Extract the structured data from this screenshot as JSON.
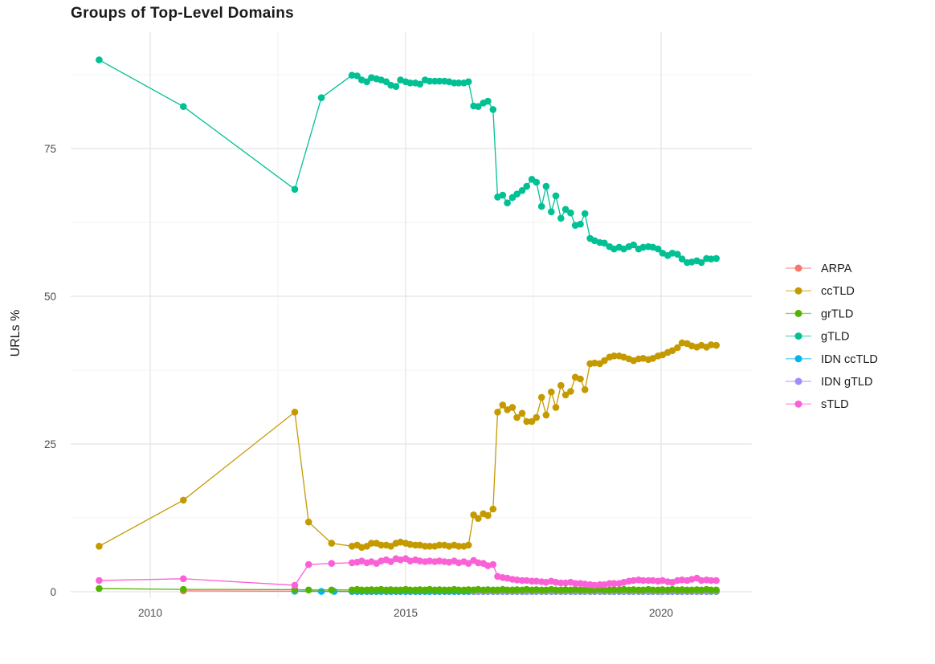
{
  "chart_data": {
    "type": "scatter",
    "title": "Groups of Top-Level Domains",
    "xlabel": "",
    "ylabel": "URLs %",
    "x_range_years": [
      2008.6,
      2021.4
    ],
    "ylim": [
      -2,
      93
    ],
    "grid": {
      "major_x": [
        2010,
        2015,
        2020
      ],
      "minor_x": [
        2012.5,
        2017.5
      ],
      "major_y": [
        0,
        25,
        50,
        75
      ],
      "minor_y": [
        12.5,
        37.5,
        62.5,
        87.5
      ]
    },
    "x_ticks": [
      {
        "label": "2010",
        "value": 2010
      },
      {
        "label": "2015",
        "value": 2015
      },
      {
        "label": "2020",
        "value": 2020
      }
    ],
    "y_ticks": [
      {
        "label": "0",
        "value": 0
      },
      {
        "label": "25",
        "value": 25
      },
      {
        "label": "50",
        "value": 50
      },
      {
        "label": "75",
        "value": 75
      }
    ],
    "x_dense": [
      2013.95,
      2014.05,
      2014.14,
      2014.24,
      2014.33,
      2014.43,
      2014.52,
      2014.62,
      2014.71,
      2014.81,
      2014.9,
      2015.0,
      2015.09,
      2015.19,
      2015.28,
      2015.38,
      2015.47,
      2015.57,
      2015.66,
      2015.76,
      2015.85,
      2015.95,
      2016.04,
      2016.14,
      2016.23,
      2016.33,
      2016.42,
      2016.52,
      2016.61,
      2016.71,
      2016.8,
      2016.9,
      2016.99,
      2017.09,
      2017.18,
      2017.28,
      2017.37,
      2017.47,
      2017.56,
      2017.66,
      2017.75,
      2017.85,
      2017.94,
      2018.04,
      2018.13,
      2018.23,
      2018.32,
      2018.42,
      2018.51,
      2018.61,
      2018.7,
      2018.8,
      2018.89,
      2018.99,
      2019.08,
      2019.18,
      2019.27,
      2019.37,
      2019.46,
      2019.56,
      2019.65,
      2019.75,
      2019.84,
      2019.94,
      2020.03,
      2020.13,
      2020.22,
      2020.32,
      2020.41,
      2020.51,
      2020.6,
      2020.7,
      2020.79,
      2020.89,
      2020.98,
      2021.08
    ],
    "series": [
      {
        "name": "ARPA",
        "color": "#F8766D",
        "early": [
          [
            2010.65,
            0.15
          ],
          [
            2012.83,
            0.1
          ]
        ],
        "dense": [
          0.04,
          0.04,
          0.04,
          0.04,
          0.04,
          0.04,
          0.04,
          0.04,
          0.04,
          0.04,
          0.04,
          0.04,
          0.04,
          0.04,
          0.04,
          0.04,
          0.04,
          0.04,
          0.04,
          0.04,
          0.04,
          0.04,
          0.04,
          0.04,
          0.04,
          0.04,
          0.04,
          0.04,
          0.04,
          0.04,
          0.04,
          0.04,
          0.04,
          0.04,
          0.04,
          0.04,
          0.04,
          0.04,
          0.04,
          0.04,
          0.04,
          0.04,
          0.04,
          0.04,
          0.04,
          0.04,
          0.04,
          0.04,
          0.04,
          0.04,
          0.04,
          0.04,
          0.04,
          0.04,
          0.04,
          0.04,
          0.04,
          0.04,
          0.04,
          0.04,
          0.04,
          0.04,
          0.04,
          0.04,
          0.04,
          0.04,
          0.04,
          0.04,
          0.04,
          0.04,
          0.04,
          0.04,
          0.04,
          0.04,
          0.04,
          0.04
        ]
      },
      {
        "name": "ccTLD",
        "color": "#C49A00",
        "early": [
          [
            2009.0,
            7.7
          ],
          [
            2010.65,
            15.5
          ],
          [
            2012.83,
            30.4
          ],
          [
            2013.1,
            11.8
          ],
          [
            2013.55,
            8.2
          ]
        ],
        "dense": [
          7.7,
          7.9,
          7.5,
          7.7,
          8.2,
          8.2,
          7.9,
          7.9,
          7.7,
          8.2,
          8.4,
          8.2,
          8.0,
          7.9,
          7.9,
          7.7,
          7.7,
          7.7,
          7.9,
          7.9,
          7.7,
          7.9,
          7.7,
          7.7,
          7.9,
          13.0,
          12.4,
          13.2,
          12.9,
          14.0,
          30.4,
          31.6,
          30.8,
          31.2,
          29.5,
          30.2,
          28.8,
          28.8,
          29.5,
          32.9,
          29.9,
          33.8,
          31.2,
          34.9,
          33.3,
          33.9,
          36.3,
          36.0,
          34.2,
          38.6,
          38.7,
          38.6,
          39.1,
          39.7,
          39.9,
          39.9,
          39.7,
          39.4,
          39.1,
          39.4,
          39.5,
          39.3,
          39.5,
          39.9,
          40.1,
          40.5,
          40.8,
          41.3,
          42.1,
          42.0,
          41.6,
          41.4,
          41.7,
          41.4,
          41.8,
          41.7
        ]
      },
      {
        "name": "grTLD",
        "color": "#53B400",
        "early": [
          [
            2009.0,
            0.55
          ],
          [
            2010.65,
            0.4
          ],
          [
            2012.83,
            0.35
          ],
          [
            2013.1,
            0.3
          ],
          [
            2013.55,
            0.3
          ]
        ],
        "dense": [
          0.3,
          0.4,
          0.3,
          0.3,
          0.35,
          0.3,
          0.4,
          0.3,
          0.35,
          0.3,
          0.3,
          0.4,
          0.3,
          0.3,
          0.35,
          0.3,
          0.4,
          0.3,
          0.35,
          0.3,
          0.3,
          0.4,
          0.3,
          0.3,
          0.35,
          0.3,
          0.4,
          0.3,
          0.35,
          0.3,
          0.3,
          0.4,
          0.3,
          0.3,
          0.35,
          0.3,
          0.4,
          0.3,
          0.35,
          0.3,
          0.3,
          0.4,
          0.3,
          0.3,
          0.35,
          0.3,
          0.4,
          0.3,
          0.35,
          0.3,
          0.3,
          0.4,
          0.3,
          0.3,
          0.35,
          0.3,
          0.4,
          0.3,
          0.35,
          0.3,
          0.3,
          0.4,
          0.3,
          0.3,
          0.35,
          0.3,
          0.4,
          0.3,
          0.35,
          0.3,
          0.3,
          0.35,
          0.3,
          0.4,
          0.3,
          0.3
        ]
      },
      {
        "name": "gTLD",
        "color": "#00C094",
        "early": [
          [
            2009.0,
            90.0
          ],
          [
            2010.65,
            82.1
          ],
          [
            2012.83,
            68.1
          ],
          [
            2013.35,
            83.6
          ]
        ],
        "dense": [
          87.4,
          87.3,
          86.6,
          86.3,
          87.0,
          86.8,
          86.6,
          86.3,
          85.7,
          85.5,
          86.6,
          86.3,
          86.1,
          86.1,
          85.9,
          86.6,
          86.4,
          86.4,
          86.4,
          86.4,
          86.3,
          86.1,
          86.1,
          86.1,
          86.3,
          82.2,
          82.1,
          82.7,
          83.0,
          81.6,
          66.8,
          67.1,
          65.8,
          66.7,
          67.3,
          67.9,
          68.6,
          69.8,
          69.3,
          65.2,
          68.6,
          64.3,
          67.0,
          63.2,
          64.7,
          64.1,
          62.0,
          62.2,
          64.0,
          59.8,
          59.4,
          59.1,
          59.0,
          58.4,
          58.0,
          58.3,
          58.0,
          58.4,
          58.7,
          58.0,
          58.3,
          58.4,
          58.3,
          58.0,
          57.3,
          56.9,
          57.3,
          57.1,
          56.3,
          55.7,
          55.8,
          56.0,
          55.7,
          56.4,
          56.3,
          56.4
        ]
      },
      {
        "name": "IDN ccTLD",
        "color": "#00B6EB",
        "early": [
          [
            2012.83,
            0.1
          ],
          [
            2013.35,
            0.05
          ],
          [
            2013.6,
            0.05
          ]
        ],
        "dense": [
          0.05,
          0.05,
          0.05,
          0.05,
          0.05,
          0.05,
          0.05,
          0.05,
          0.05,
          0.05,
          0.05,
          0.05,
          0.05,
          0.05,
          0.05,
          0.05,
          0.05,
          0.05,
          0.05,
          0.05,
          0.05,
          0.05,
          0.05,
          0.05,
          0.05,
          0.05,
          0.05,
          0.05,
          0.05,
          0.05,
          0.05,
          0.05,
          0.05,
          0.05,
          0.05,
          0.05,
          0.05,
          0.05,
          0.05,
          0.05,
          0.05,
          0.05,
          0.05,
          0.05,
          0.05,
          0.05,
          0.05,
          0.05,
          0.05,
          0.05,
          0.05,
          0.05,
          0.05,
          0.05,
          0.05,
          0.05,
          0.05,
          0.05,
          0.05,
          0.05,
          0.05,
          0.05,
          0.05,
          0.05,
          0.05,
          0.05,
          0.05,
          0.05,
          0.05,
          0.05,
          0.05,
          0.05,
          0.05,
          0.05,
          0.05,
          0.05
        ]
      },
      {
        "name": "IDN gTLD",
        "color": "#A58AFF",
        "early": [],
        "dense": [
          null,
          null,
          null,
          null,
          null,
          null,
          null,
          null,
          null,
          null,
          null,
          null,
          null,
          null,
          null,
          null,
          null,
          null,
          null,
          null,
          null,
          null,
          null,
          null,
          null,
          0.08,
          0.08,
          0.08,
          0.08,
          0.08,
          0.08,
          0.08,
          0.08,
          0.08,
          0.08,
          0.08,
          0.08,
          0.08,
          0.08,
          0.08,
          0.08,
          0.08,
          0.08,
          0.08,
          0.08,
          0.08,
          0.08,
          0.08,
          0.08,
          0.08,
          0.08,
          0.08,
          0.08,
          0.08,
          0.08,
          0.08,
          0.08,
          0.08,
          0.08,
          0.08,
          0.08,
          0.08,
          0.08,
          0.08,
          0.08,
          0.08,
          0.08,
          0.08,
          0.08,
          0.08,
          0.08,
          0.08,
          0.08,
          0.08,
          0.08,
          0.08
        ]
      },
      {
        "name": "sTLD",
        "color": "#FB61D7",
        "early": [
          [
            2009.0,
            1.9
          ],
          [
            2010.65,
            2.2
          ],
          [
            2012.83,
            1.1
          ],
          [
            2013.1,
            4.6
          ],
          [
            2013.55,
            4.8
          ]
        ],
        "dense": [
          4.9,
          5.0,
          5.2,
          4.9,
          5.1,
          4.8,
          5.2,
          5.4,
          5.1,
          5.6,
          5.4,
          5.6,
          5.2,
          5.4,
          5.2,
          5.1,
          5.2,
          5.1,
          5.2,
          5.1,
          5.0,
          5.2,
          4.9,
          5.1,
          4.8,
          5.3,
          4.9,
          4.8,
          4.4,
          4.6,
          2.6,
          2.4,
          2.3,
          2.1,
          2.0,
          1.9,
          1.9,
          1.8,
          1.8,
          1.7,
          1.6,
          1.8,
          1.6,
          1.5,
          1.5,
          1.6,
          1.4,
          1.4,
          1.3,
          1.2,
          1.1,
          1.2,
          1.2,
          1.4,
          1.4,
          1.4,
          1.6,
          1.8,
          1.9,
          2.0,
          1.9,
          1.9,
          1.9,
          1.8,
          1.9,
          1.7,
          1.6,
          1.9,
          2.0,
          1.9,
          2.1,
          2.3,
          1.9,
          2.0,
          1.9,
          1.9
        ]
      }
    ],
    "draw_order": [
      "ARPA",
      "IDN ccTLD",
      "IDN gTLD",
      "grTLD",
      "ccTLD",
      "gTLD",
      "sTLD"
    ],
    "legend_position": "right"
  },
  "legend": {
    "items": [
      "ARPA",
      "ccTLD",
      "grTLD",
      "gTLD",
      "IDN ccTLD",
      "IDN gTLD",
      "sTLD"
    ]
  },
  "style_colors": {
    "grid_major": "#e3e3e3",
    "grid_minor": "#efefef",
    "tick_text": "#4d4d4d",
    "text": "#1a1a1a"
  }
}
